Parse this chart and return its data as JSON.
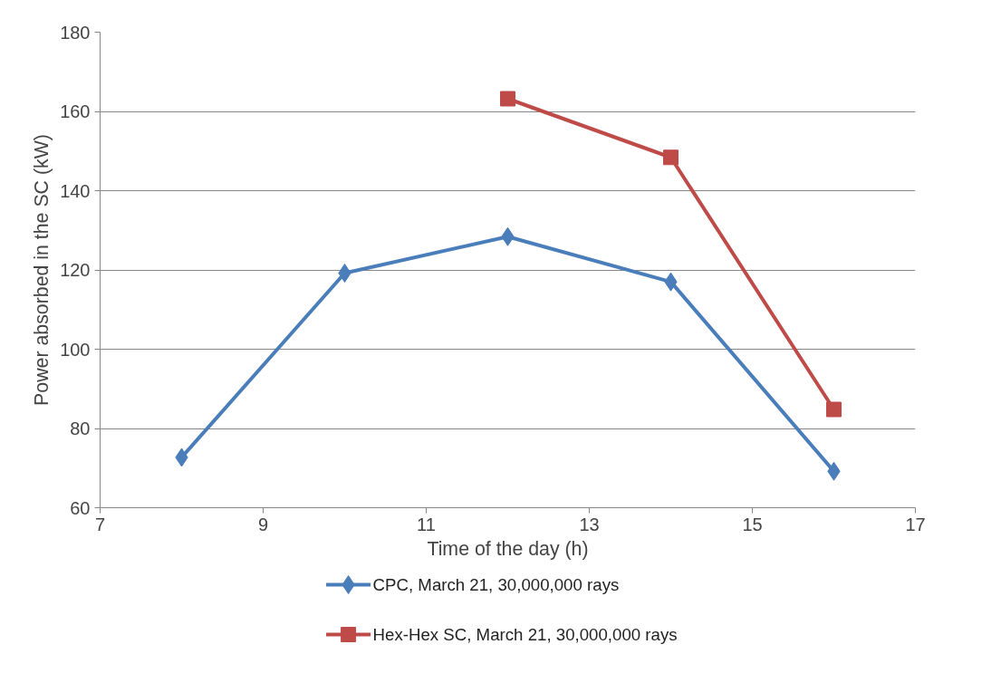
{
  "chart_data": {
    "type": "line",
    "xlabel": "Time of the day (h)",
    "ylabel": "Power absorbed in the SC (kW)",
    "xlim": [
      7,
      17
    ],
    "xticks": [
      7,
      9,
      11,
      13,
      15,
      17
    ],
    "ylim": [
      60,
      180
    ],
    "yticks": [
      60,
      80,
      100,
      120,
      140,
      160,
      180
    ],
    "grid": "y",
    "legend": "bottom",
    "line_style": "solid",
    "series": [
      {
        "name": "CPC, March 21, 30,000,000 rays",
        "color": "#4a7ebb",
        "marker": "diamond",
        "x": [
          8,
          10,
          12,
          14,
          16
        ],
        "values": [
          72.7,
          119.2,
          128.4,
          117.0,
          69.2
        ]
      },
      {
        "name": "Hex-Hex SC, March 21, 30,000,000 rays",
        "color": "#be4b48",
        "marker": "square",
        "x": [
          12,
          14,
          16
        ],
        "values": [
          163.2,
          148.4,
          84.8
        ]
      }
    ]
  }
}
